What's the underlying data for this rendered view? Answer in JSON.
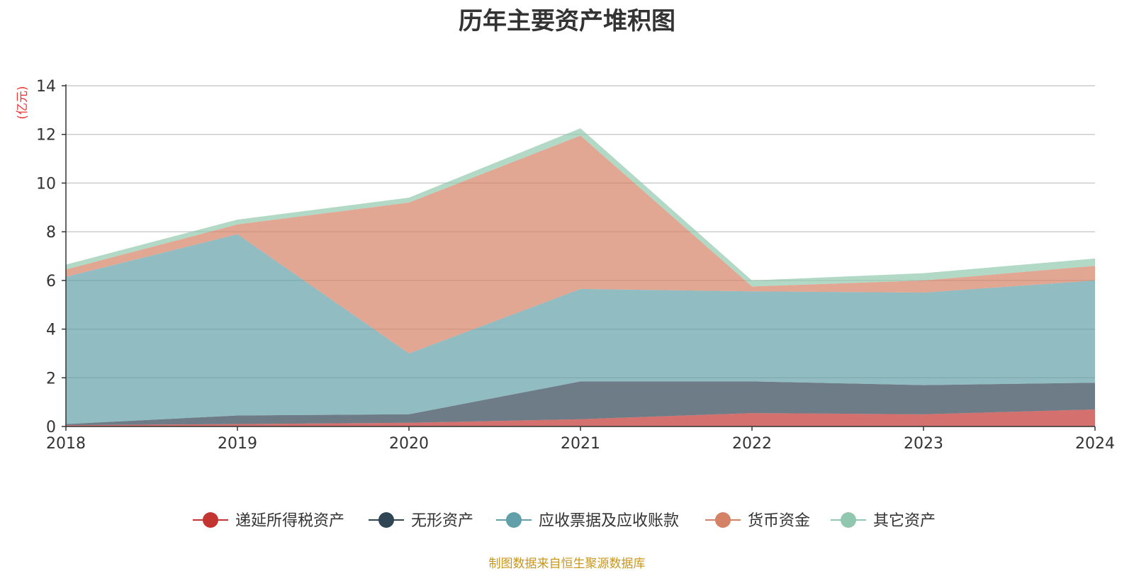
{
  "chart_data": {
    "type": "area",
    "title": "历年主要资产堆积图",
    "ylabel": "(亿元)",
    "xlabel": "",
    "x": [
      "2018",
      "2019",
      "2020",
      "2021",
      "2022",
      "2023",
      "2024"
    ],
    "ylim": [
      0,
      14
    ],
    "yticks": [
      "0",
      "2",
      "4",
      "6",
      "8",
      "10",
      "12",
      "14"
    ],
    "stacked": true,
    "grid": true,
    "legend_position": "bottom",
    "series": [
      {
        "name": "递延所得税资产",
        "color": "#c23531",
        "values": [
          0.05,
          0.1,
          0.15,
          0.3,
          0.55,
          0.5,
          0.7
        ]
      },
      {
        "name": "无形资产",
        "color": "#2f4554",
        "values": [
          0.05,
          0.35,
          0.35,
          1.55,
          1.3,
          1.2,
          1.1
        ]
      },
      {
        "name": "应收票据及应收账款",
        "color": "#61a0a8",
        "values": [
          6.05,
          7.45,
          2.5,
          3.8,
          3.7,
          3.8,
          4.2
        ]
      },
      {
        "name": "货币资金",
        "color": "#d48265",
        "values": [
          0.3,
          0.4,
          6.2,
          6.3,
          0.2,
          0.5,
          0.6
        ]
      },
      {
        "name": "其它资产",
        "color": "#91c7ae",
        "values": [
          0.2,
          0.2,
          0.2,
          0.3,
          0.25,
          0.3,
          0.3
        ]
      }
    ]
  },
  "footer": {
    "source": "制图数据来自恒生聚源数据库"
  }
}
